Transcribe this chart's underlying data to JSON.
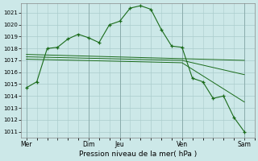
{
  "background_color": "#cce8e8",
  "grid_color": "#aacccc",
  "line_color": "#1a6b1a",
  "xlabel": "Pression niveau de la mer( hPa )",
  "ylim": [
    1010.5,
    1021.8
  ],
  "yticks": [
    1011,
    1012,
    1013,
    1014,
    1015,
    1016,
    1017,
    1018,
    1019,
    1020,
    1021
  ],
  "xtick_labels": [
    "Mer",
    "",
    "Dim",
    "Jeu",
    "",
    "Ven",
    "",
    "Sam"
  ],
  "xtick_positions": [
    0,
    3,
    6,
    9,
    12,
    15,
    18,
    21
  ],
  "vline_positions": [
    0,
    6,
    9,
    15,
    21
  ],
  "series1_x": [
    0,
    1,
    2,
    3,
    4,
    5,
    6,
    7,
    8,
    9,
    10,
    11,
    12,
    13,
    14,
    15,
    16,
    17,
    18,
    19,
    20,
    21
  ],
  "series1_y": [
    1014.7,
    1015.2,
    1018.0,
    1018.1,
    1018.8,
    1019.2,
    1018.9,
    1018.5,
    1020.0,
    1020.3,
    1021.4,
    1021.6,
    1021.3,
    1019.6,
    1018.2,
    1018.1,
    1015.5,
    1015.2,
    1013.8,
    1014.0,
    1012.2,
    1011.0
  ],
  "series2_x": [
    0,
    21
  ],
  "series2_y": [
    1017.5,
    1017.0
  ],
  "series3_x": [
    0,
    15,
    21
  ],
  "series3_y": [
    1017.3,
    1017.0,
    1015.8
  ],
  "series4_x": [
    0,
    15,
    21
  ],
  "series4_y": [
    1017.1,
    1016.8,
    1013.5
  ]
}
